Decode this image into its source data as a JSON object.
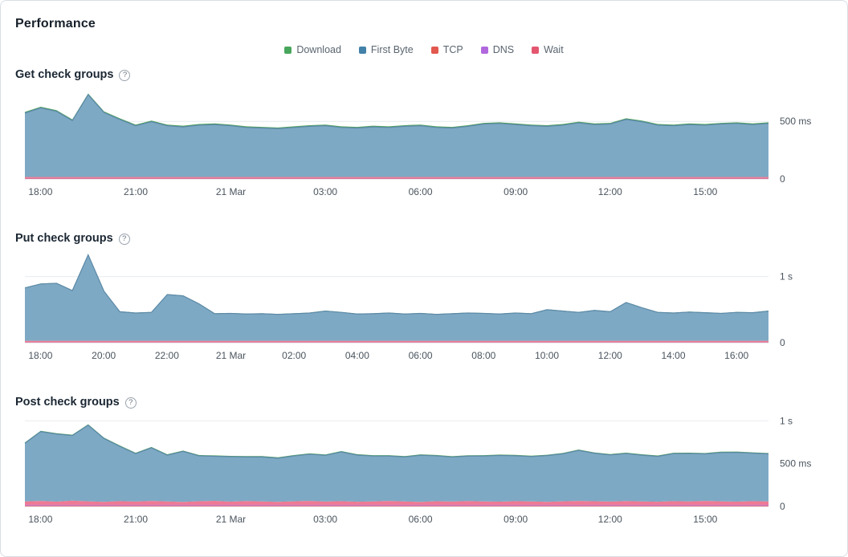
{
  "title": "Performance",
  "legend": {
    "items": [
      {
        "label": "Download",
        "color": "#48a65c"
      },
      {
        "label": "First Byte",
        "color": "#4281a8"
      },
      {
        "label": "TCP",
        "color": "#e2584e"
      },
      {
        "label": "DNS",
        "color": "#b168dd"
      },
      {
        "label": "Wait",
        "color": "#e4566f"
      }
    ]
  },
  "series_colors": {
    "tcp": "#e2584e",
    "dns": "#bb77e0",
    "wait": "#ed7a94",
    "first_byte": "#7ea9c4",
    "first_byte_stroke": "#5b89a7",
    "download": "#52a55c"
  },
  "axis_style": {
    "label_color": "#4a545e",
    "grid_color": "#e7ebef",
    "baseline_color": "#d9dee3"
  },
  "chart_data": [
    {
      "type": "area",
      "title": "Get check groups",
      "unit": "ms",
      "ymax": 780,
      "yticks": [
        {
          "value": 500,
          "label": "500 ms"
        },
        {
          "value": 0,
          "label": "0"
        }
      ],
      "xlabels": [
        {
          "label": "18:00",
          "f": 0.021
        },
        {
          "label": "21:00",
          "f": 0.149
        },
        {
          "label": "21 Mar",
          "f": 0.277
        },
        {
          "label": "03:00",
          "f": 0.404
        },
        {
          "label": "06:00",
          "f": 0.532
        },
        {
          "label": "09:00",
          "f": 0.66
        },
        {
          "label": "12:00",
          "f": 0.787
        },
        {
          "label": "15:00",
          "f": 0.915
        }
      ],
      "stack_order": [
        "tcp",
        "dns",
        "wait",
        "first_byte",
        "download"
      ],
      "series": {
        "tcp": 4,
        "dns": 4,
        "wait": 9,
        "download": 10,
        "first_byte": [
          555,
          600,
          570,
          490,
          715,
          560,
          500,
          445,
          480,
          445,
          435,
          450,
          455,
          445,
          430,
          425,
          420,
          430,
          440,
          445,
          430,
          425,
          435,
          430,
          440,
          445,
          430,
          425,
          440,
          460,
          465,
          455,
          445,
          440,
          450,
          470,
          455,
          460,
          500,
          480,
          450,
          445,
          455,
          450,
          460,
          465,
          455,
          465
        ]
      }
    },
    {
      "type": "area",
      "title": "Put check groups",
      "unit": "ms",
      "ymax": 1360,
      "yticks": [
        {
          "value": 1000,
          "label": "1 s"
        },
        {
          "value": 0,
          "label": "0"
        }
      ],
      "xlabels": [
        {
          "label": "18:00",
          "f": 0.021
        },
        {
          "label": "20:00",
          "f": 0.106
        },
        {
          "label": "22:00",
          "f": 0.191
        },
        {
          "label": "21 Mar",
          "f": 0.277
        },
        {
          "label": "02:00",
          "f": 0.362
        },
        {
          "label": "04:00",
          "f": 0.447
        },
        {
          "label": "06:00",
          "f": 0.532
        },
        {
          "label": "08:00",
          "f": 0.617
        },
        {
          "label": "10:00",
          "f": 0.702
        },
        {
          "label": "12:00",
          "f": 0.787
        },
        {
          "label": "14:00",
          "f": 0.872
        },
        {
          "label": "16:00",
          "f": 0.957
        }
      ],
      "stack_order": [
        "tcp",
        "dns",
        "wait",
        "first_byte",
        "download"
      ],
      "series": {
        "tcp": 4,
        "dns": 5,
        "wait": 20,
        "download": 6,
        "first_byte": [
          800,
          860,
          870,
          760,
          1300,
          750,
          440,
          420,
          430,
          700,
          680,
          560,
          410,
          415,
          405,
          410,
          400,
          410,
          420,
          450,
          430,
          405,
          410,
          420,
          405,
          415,
          400,
          410,
          420,
          415,
          405,
          420,
          410,
          470,
          450,
          430,
          460,
          440,
          580,
          500,
          430,
          420,
          435,
          425,
          415,
          430,
          425,
          450
        ]
      }
    },
    {
      "type": "area",
      "title": "Post check groups",
      "unit": "ms",
      "ymax": 1050,
      "yticks": [
        {
          "value": 1000,
          "label": "1 s"
        },
        {
          "value": 500,
          "label": "500 ms"
        },
        {
          "value": 0,
          "label": "0"
        }
      ],
      "xlabels": [
        {
          "label": "18:00",
          "f": 0.021
        },
        {
          "label": "21:00",
          "f": 0.149
        },
        {
          "label": "21 Mar",
          "f": 0.277
        },
        {
          "label": "03:00",
          "f": 0.404
        },
        {
          "label": "06:00",
          "f": 0.532
        },
        {
          "label": "09:00",
          "f": 0.66
        },
        {
          "label": "12:00",
          "f": 0.787
        },
        {
          "label": "15:00",
          "f": 0.915
        }
      ],
      "stack_order": [
        "tcp",
        "dns",
        "wait",
        "first_byte",
        "download"
      ],
      "series": {
        "tcp": 8,
        "dns": 10,
        "download": 10,
        "wait": [
          40,
          46,
          38,
          50,
          42,
          36,
          44,
          39,
          47,
          41,
          35,
          43,
          48,
          38,
          45,
          40,
          36,
          42,
          47,
          39,
          44,
          37,
          41,
          46,
          40,
          35,
          43,
          39,
          45,
          41,
          38,
          44,
          40,
          36,
          42,
          47,
          43,
          39,
          45,
          41,
          37,
          44,
          40,
          46,
          42,
          38,
          44,
          41
        ],
        "first_byte": [
          680,
          810,
          790,
          760,
          890,
          740,
          640,
          560,
          620,
          540,
          590,
          530,
          520,
          525,
          515,
          520,
          510,
          530,
          545,
          540,
          575,
          545,
          530,
          525,
          520,
          545,
          530,
          520,
          525,
          530,
          540,
          530,
          525,
          540,
          555,
          590,
          560,
          545,
          555,
          540,
          530,
          555,
          560,
          550,
          570,
          575,
          560,
          555
        ]
      }
    }
  ]
}
